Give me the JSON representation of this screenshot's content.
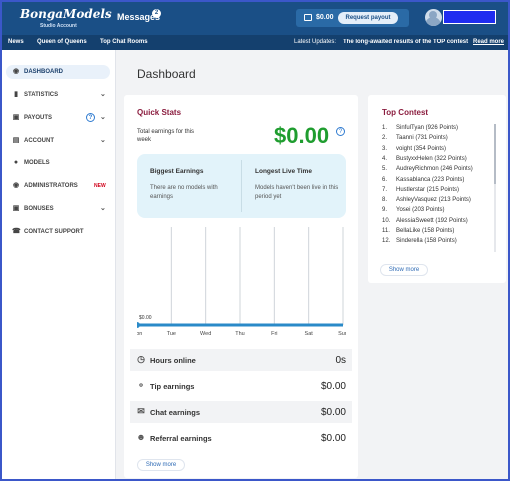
{
  "header": {
    "logo": "BongaModels",
    "logo_sub": "Studio Account",
    "messages_label": "Messages",
    "messages_count": "2",
    "balance": "$0.00",
    "payout_label": "Request payout"
  },
  "nav": {
    "links": [
      "News",
      "Queen of Queens",
      "Top Chat Rooms"
    ],
    "ticker_label": "Latest Updates:",
    "ticker_text": "The long-awaited results of the TOP contest",
    "read_more": "Read more"
  },
  "sidebar": {
    "items": [
      {
        "label": "DASHBOARD",
        "icon": "dashboard-icon"
      },
      {
        "label": "STATISTICS",
        "icon": "bar-chart-icon"
      },
      {
        "label": "PAYOUTS",
        "icon": "wallet-icon"
      },
      {
        "label": "ACCOUNT",
        "icon": "card-icon"
      },
      {
        "label": "MODELS",
        "icon": "person-icon"
      },
      {
        "label": "ADMINISTRATORS",
        "icon": "admin-icon",
        "tag": "NEW"
      },
      {
        "label": "BONUSES",
        "icon": "gift-icon"
      },
      {
        "label": "CONTACT SUPPORT",
        "icon": "support-icon"
      }
    ]
  },
  "page": {
    "title": "Dashboard"
  },
  "quick_stats": {
    "title": "Quick Stats",
    "total_label": "Total earnings for this week",
    "total_value": "$0.00",
    "biggest_title": "Biggest Earnings",
    "biggest_text": "There are no models with earnings",
    "longest_title": "Longest Live Time",
    "longest_text": "Models haven't been live in this period yet",
    "rows": [
      {
        "label": "Hours online",
        "value": "0s",
        "icon": "clock-icon"
      },
      {
        "label": "Tip earnings",
        "value": "$0.00",
        "icon": "coins-icon"
      },
      {
        "label": "Chat earnings",
        "value": "$0.00",
        "icon": "chat-icon"
      },
      {
        "label": "Referral earnings",
        "value": "$0.00",
        "icon": "users-icon"
      }
    ],
    "show_more": "Show more"
  },
  "chart_data": {
    "type": "line",
    "categories": [
      "Mon",
      "Tue",
      "Wed",
      "Thu",
      "Fri",
      "Sat",
      "Sun"
    ],
    "values": [
      0,
      0,
      0,
      0,
      0,
      0,
      0
    ],
    "point_label": "$0.00",
    "accent": "#2a8ac8"
  },
  "top_contest": {
    "title": "Top Contest",
    "entries": [
      {
        "rank": "1.",
        "text": "SinfulTyan (926 Points)"
      },
      {
        "rank": "2.",
        "text": "Taanni (731 Points)"
      },
      {
        "rank": "3.",
        "text": "voight (354 Points)"
      },
      {
        "rank": "4.",
        "text": "BustyxxHelen (322 Points)"
      },
      {
        "rank": "5.",
        "text": "AudreyRichmon (246 Points)"
      },
      {
        "rank": "6.",
        "text": "Kassablanca (223 Points)"
      },
      {
        "rank": "7.",
        "text": "Hustlerstar (215 Points)"
      },
      {
        "rank": "8.",
        "text": "AshleyVasquez (213 Points)"
      },
      {
        "rank": "9.",
        "text": "Yosei (203 Points)"
      },
      {
        "rank": "10.",
        "text": "AlessiaSweett (192 Points)"
      },
      {
        "rank": "11.",
        "text": "BellaLike (158 Points)"
      },
      {
        "rank": "12.",
        "text": "Sinderella (158 Points)"
      }
    ],
    "show_more": "Show more"
  }
}
